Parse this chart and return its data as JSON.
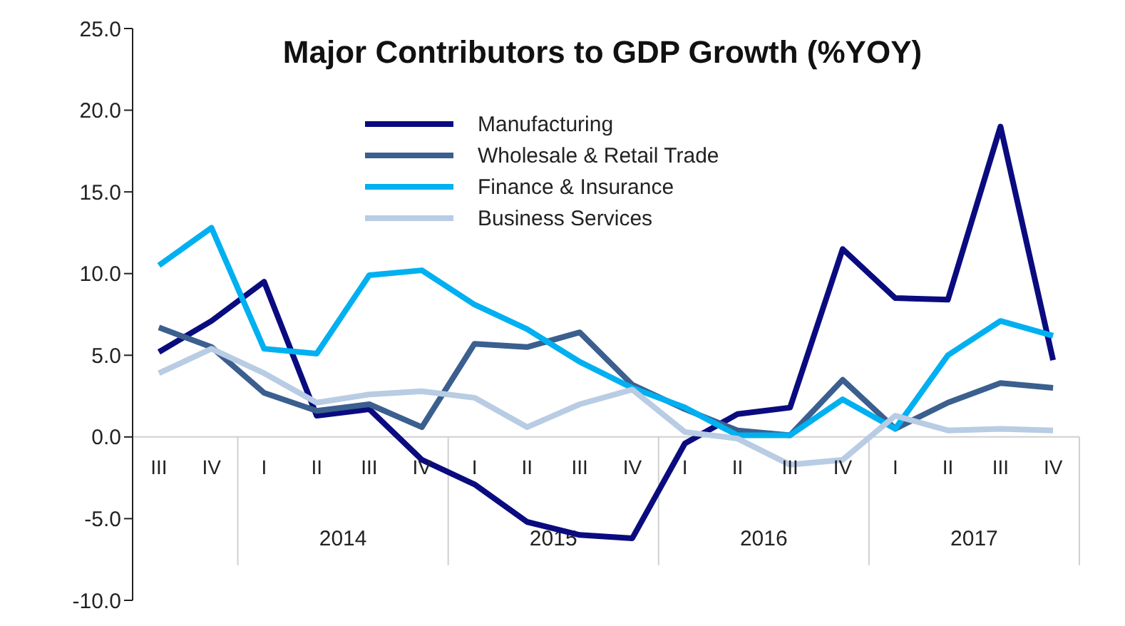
{
  "chart_data": {
    "type": "line",
    "title": "Major Contributors to GDP Growth (%YOY)",
    "categories": [
      "III",
      "IV",
      "I",
      "II",
      "III",
      "IV",
      "I",
      "II",
      "III",
      "IV",
      "I",
      "II",
      "III",
      "IV",
      "I",
      "II",
      "III",
      "IV"
    ],
    "annotations": [
      "2014",
      "2015",
      "2016",
      "2017"
    ],
    "series": [
      {
        "name": "Manufacturing",
        "color": "#0b0b80",
        "values": [
          5.2,
          7.1,
          9.5,
          1.3,
          1.7,
          -1.4,
          -2.9,
          -5.2,
          -6.0,
          -6.2,
          -0.4,
          1.4,
          1.8,
          11.5,
          8.5,
          8.4,
          19.0,
          4.7
        ]
      },
      {
        "name": "Wholesale & Retail Trade",
        "color": "#3b5f8e",
        "values": [
          6.7,
          5.5,
          2.7,
          1.6,
          2.0,
          0.6,
          5.7,
          5.5,
          6.4,
          3.2,
          1.7,
          0.4,
          0.1,
          3.5,
          0.5,
          2.1,
          3.3,
          3.0
        ]
      },
      {
        "name": "Finance & Insurance",
        "color": "#00b0f0",
        "values": [
          10.5,
          12.8,
          5.4,
          5.1,
          9.9,
          10.2,
          8.1,
          6.6,
          4.6,
          3.0,
          1.8,
          0.1,
          0.1,
          2.3,
          0.5,
          5.0,
          7.1,
          6.2
        ]
      },
      {
        "name": "Business Services",
        "color": "#b8cce4",
        "values": [
          3.9,
          5.4,
          3.9,
          2.1,
          2.6,
          2.8,
          2.4,
          0.6,
          2.0,
          2.9,
          0.3,
          -0.1,
          -1.7,
          -1.4,
          1.3,
          0.4,
          0.5,
          0.4
        ]
      }
    ],
    "ylim": [
      -10,
      25
    ],
    "yticks": [
      {
        "value": -10,
        "label": "-10.0"
      },
      {
        "value": -5,
        "label": "-5.0"
      },
      {
        "value": 0,
        "label": "0.0"
      },
      {
        "value": 5,
        "label": "5.0"
      },
      {
        "value": 10,
        "label": "10.0"
      },
      {
        "value": 15,
        "label": "15.0"
      },
      {
        "value": 20,
        "label": "20.0"
      },
      {
        "value": 25,
        "label": "25.0"
      }
    ],
    "grid": false,
    "legend": "top",
    "marker": "none",
    "line_style": "solid"
  }
}
